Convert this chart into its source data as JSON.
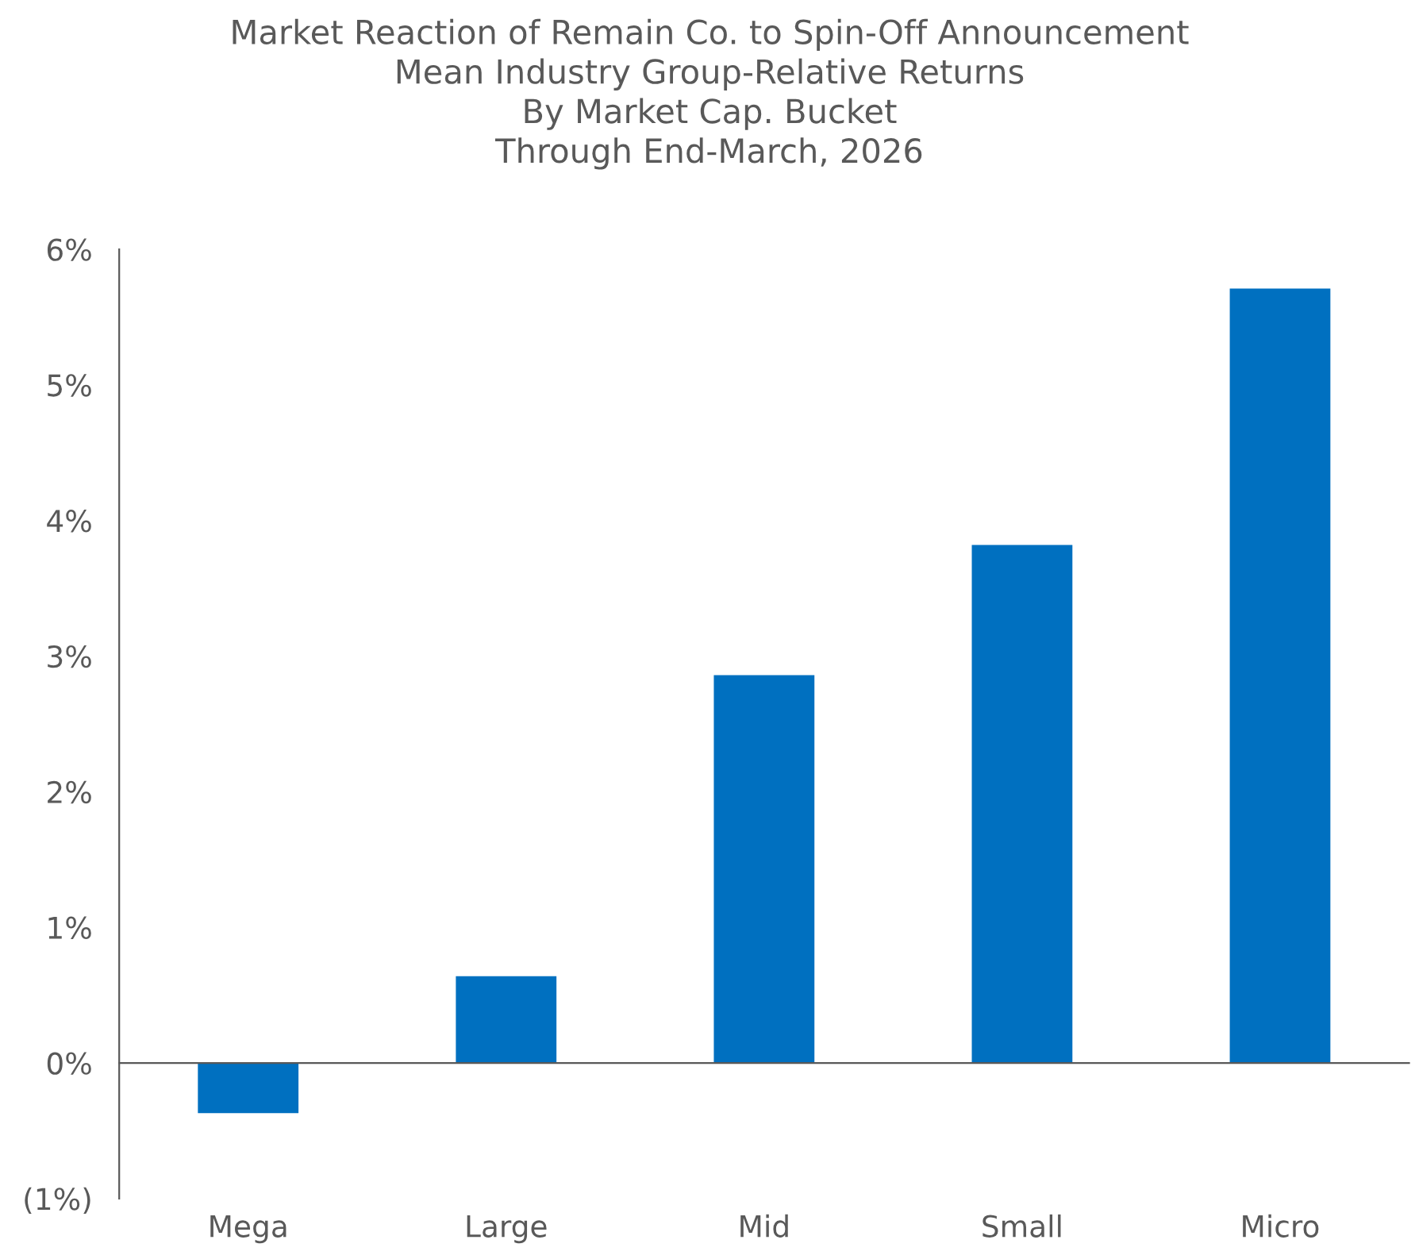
{
  "chart_data": {
    "type": "bar",
    "title": "Market Reaction of Remain Co. to Spin-Off Announcement\nMean Industry Group-Relative Returns\nBy Market Cap. Bucket\nThrough End-March, 2026",
    "categories": [
      "Mega",
      "Large",
      "Mid",
      "Small",
      "Micro"
    ],
    "values": [
      -0.37,
      0.64,
      2.86,
      3.82,
      5.71
    ],
    "color": "#0070c0",
    "ylim": [
      -1,
      6
    ],
    "yticks": [
      {
        "value": -1,
        "label": "(1%)"
      },
      {
        "value": 0,
        "label": "0%"
      },
      {
        "value": 1,
        "label": "1%"
      },
      {
        "value": 2,
        "label": "2%"
      },
      {
        "value": 3,
        "label": "3%"
      },
      {
        "value": 4,
        "label": "4%"
      },
      {
        "value": 5,
        "label": "5%"
      },
      {
        "value": 6,
        "label": "6%"
      }
    ],
    "legend": false
  }
}
